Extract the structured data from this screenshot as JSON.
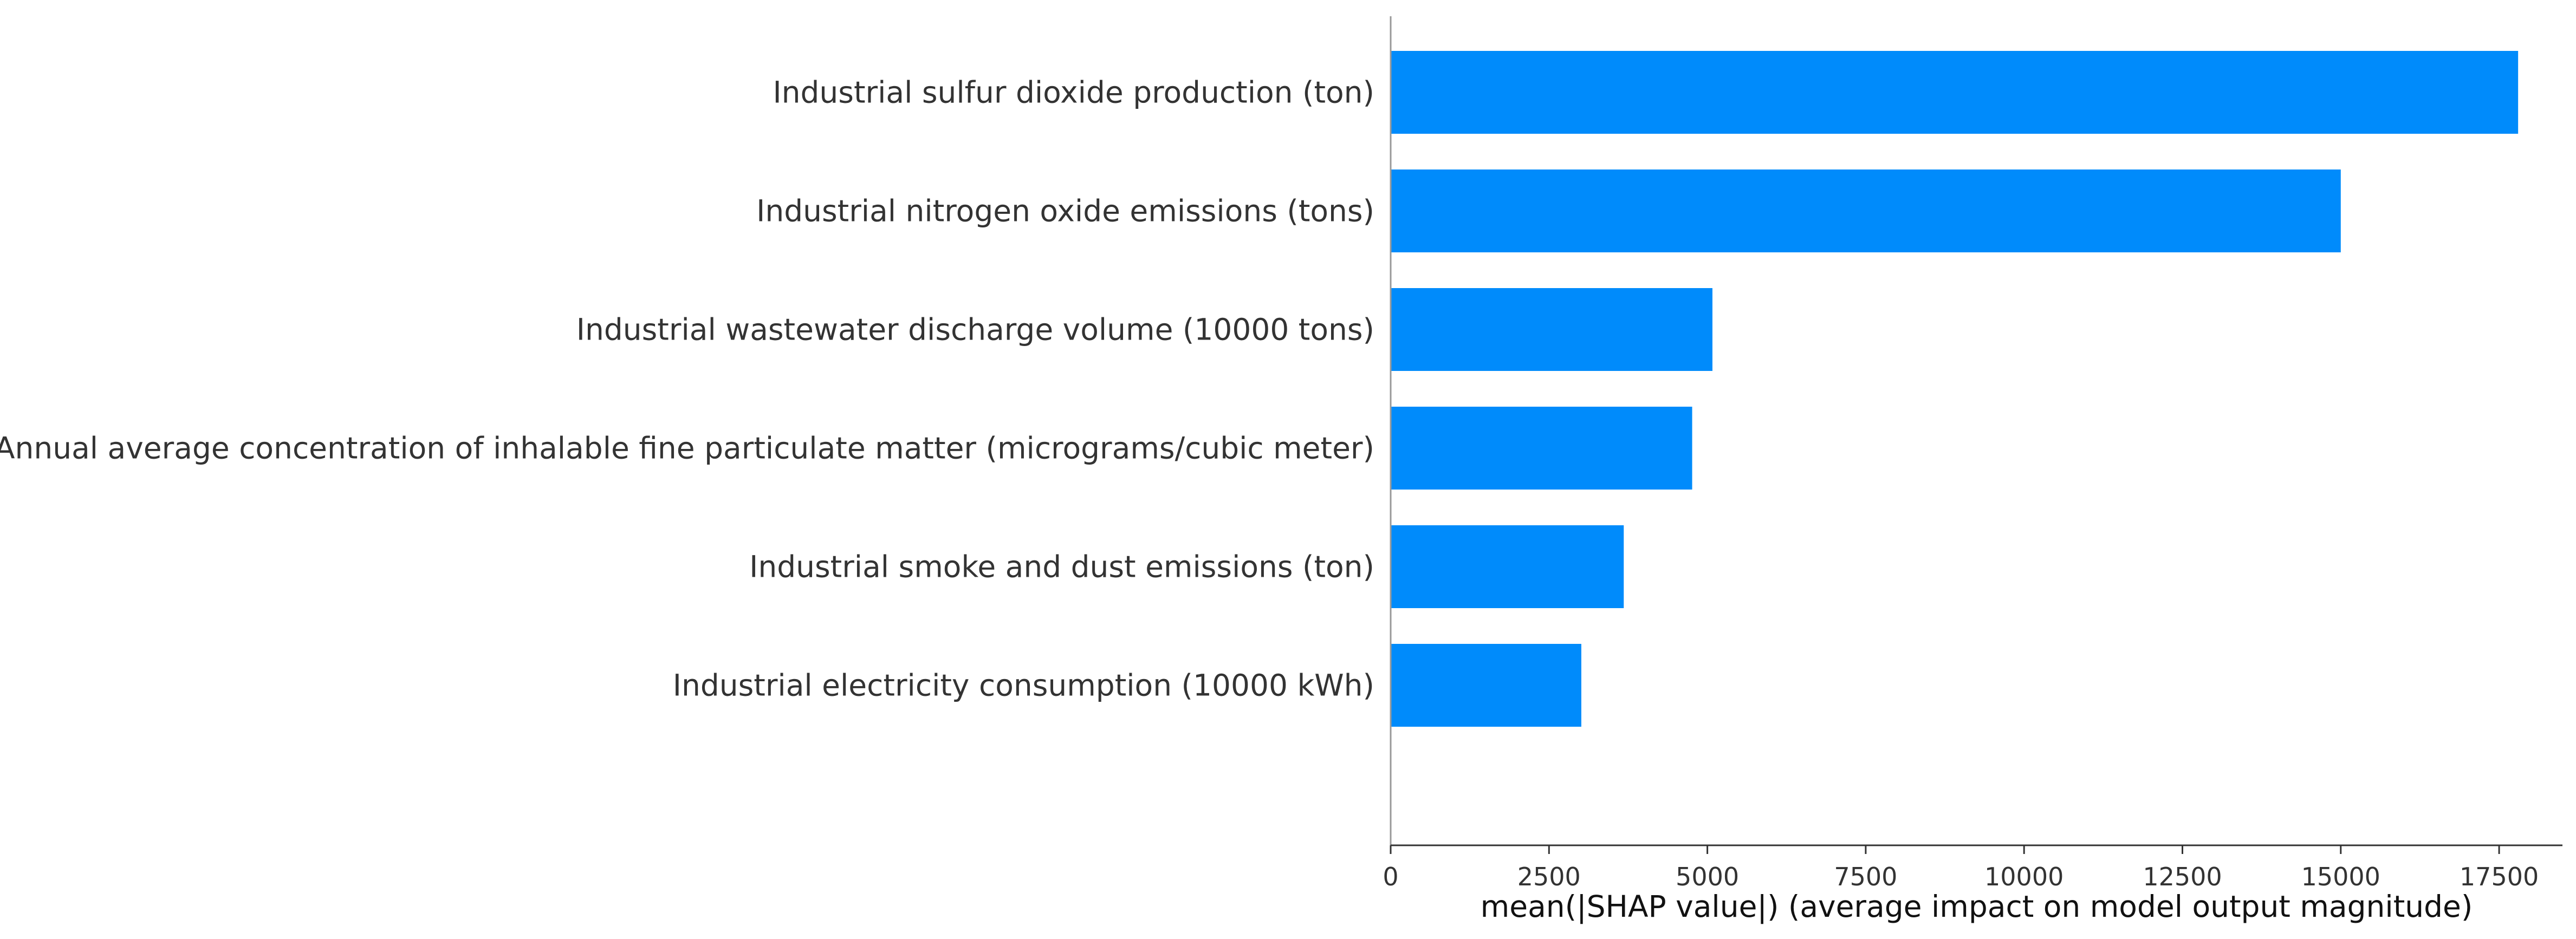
{
  "chart_data": {
    "type": "bar",
    "orientation": "horizontal",
    "categories": [
      "Industrial sulfur dioxide production (ton)",
      "Industrial nitrogen oxide emissions (tons)",
      "Industrial wastewater discharge volume (10000 tons)",
      "Annual average concentration of inhalable fine particulate matter (micrograms/cubic meter)",
      "Industrial smoke and dust emissions (ton)",
      "Industrial electricity consumption (10000 kWh)"
    ],
    "values": [
      17800,
      15000,
      5080,
      4760,
      3680,
      3010
    ],
    "title": "",
    "xlabel": "mean(|SHAP value|) (average impact on model output magnitude)",
    "ylabel": "",
    "xlim": [
      0,
      18500
    ],
    "xticks": [
      0,
      2500,
      5000,
      7500,
      10000,
      12500,
      15000,
      17500
    ],
    "xtick_labels": [
      "0",
      "2500",
      "5000",
      "7500",
      "10000",
      "12500",
      "15000",
      "17500"
    ],
    "grid": false,
    "legend": "none",
    "colors": {
      "bar": "#008bfb",
      "axis": "#333333",
      "text": "#333333"
    }
  }
}
